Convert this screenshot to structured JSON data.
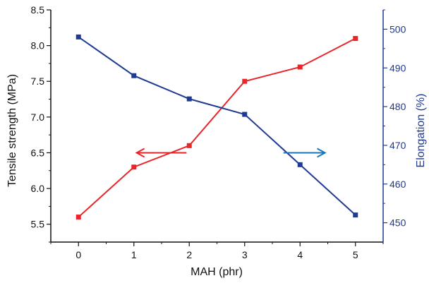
{
  "chart_data": {
    "type": "line",
    "x": [
      0,
      1,
      2,
      3,
      4,
      5
    ],
    "xlabel": "MAH  (phr)",
    "xlim": [
      -0.5,
      5.5
    ],
    "x_ticks": [
      "0",
      "1",
      "2",
      "3",
      "4",
      "5"
    ],
    "ylabel_left": "Tensile strength (MPa)",
    "ylim_left": [
      5.25,
      8.5
    ],
    "y_ticks_left": [
      "5.5",
      "6.0",
      "6.5",
      "7.0",
      "7.5",
      "8.0",
      "8.5"
    ],
    "ylabel_right": "Elongation (%)",
    "ylim_right": [
      445,
      505
    ],
    "y_ticks_right": [
      "450",
      "460",
      "470",
      "480",
      "490",
      "500"
    ],
    "grid": false,
    "legend": "none",
    "series": [
      {
        "axis": "left",
        "color": "#e8262a",
        "values": [
          5.6,
          6.3,
          6.6,
          7.5,
          7.7,
          8.1
        ]
      },
      {
        "axis": "right",
        "color": "#1f3a93",
        "values": [
          498,
          488,
          482,
          478,
          465,
          452
        ]
      }
    ],
    "annotations": [
      {
        "type": "arrow",
        "direction": "left",
        "color": "#e8262a",
        "from": [
          1.95,
          6.5
        ],
        "to": [
          1.05,
          6.5
        ]
      },
      {
        "type": "arrow",
        "direction": "right",
        "color": "#1b75bb",
        "from": [
          3.7,
          6.5
        ],
        "to": [
          4.45,
          6.5
        ]
      }
    ]
  }
}
